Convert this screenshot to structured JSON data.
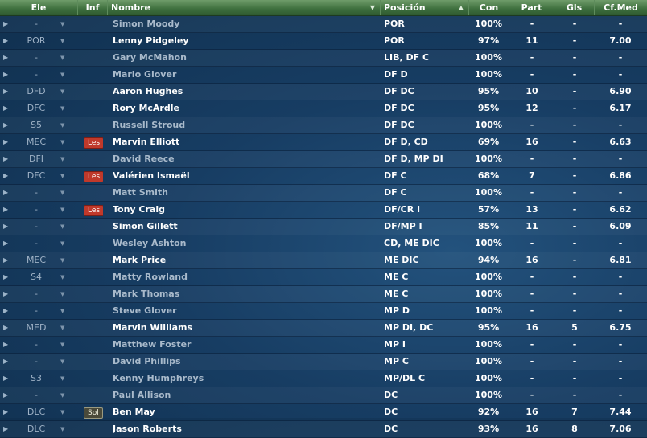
{
  "colors": {
    "header_green": "#3d6e3d",
    "background_blue": "#173d63",
    "injury_badge": "#c0392b"
  },
  "columns": {
    "ele": "Ele",
    "inf": "Inf",
    "nombre": "Nombre",
    "posicion": "Posición",
    "con": "Con",
    "part": "Part",
    "gls": "Gls",
    "cfmed": "Cf.Med"
  },
  "rows": [
    {
      "role": "-",
      "inf": "",
      "name": "Simon Moody",
      "pos": "POR",
      "con": "100%",
      "part": "-",
      "gls": "-",
      "cfmed": "-",
      "dim": true
    },
    {
      "role": "POR",
      "inf": "",
      "name": "Lenny Pidgeley",
      "pos": "POR",
      "con": "97%",
      "part": "11",
      "gls": "-",
      "cfmed": "7.00",
      "dim": false
    },
    {
      "role": "-",
      "inf": "",
      "name": "Gary McMahon",
      "pos": "LIB, DF C",
      "con": "100%",
      "part": "-",
      "gls": "-",
      "cfmed": "-",
      "dim": true
    },
    {
      "role": "-",
      "inf": "",
      "name": "Mario Glover",
      "pos": "DF D",
      "con": "100%",
      "part": "-",
      "gls": "-",
      "cfmed": "-",
      "dim": true
    },
    {
      "role": "DFD",
      "inf": "",
      "name": "Aaron Hughes",
      "pos": "DF DC",
      "con": "95%",
      "part": "10",
      "gls": "-",
      "cfmed": "6.90",
      "dim": false
    },
    {
      "role": "DFC",
      "inf": "",
      "name": "Rory McArdle",
      "pos": "DF DC",
      "con": "95%",
      "part": "12",
      "gls": "-",
      "cfmed": "6.17",
      "dim": false
    },
    {
      "role": "S5",
      "inf": "",
      "name": "Russell Stroud",
      "pos": "DF DC",
      "con": "100%",
      "part": "-",
      "gls": "-",
      "cfmed": "-",
      "dim": true
    },
    {
      "role": "MEC",
      "inf": "Les",
      "name": "Marvin Elliott",
      "pos": "DF D, CD",
      "con": "69%",
      "part": "16",
      "gls": "-",
      "cfmed": "6.63",
      "dim": false
    },
    {
      "role": "DFI",
      "inf": "",
      "name": "David Reece",
      "pos": "DF D, MP DI",
      "con": "100%",
      "part": "-",
      "gls": "-",
      "cfmed": "-",
      "dim": true
    },
    {
      "role": "DFC",
      "inf": "Les",
      "name": "Valérien Ismaël",
      "pos": "DF C",
      "con": "68%",
      "part": "7",
      "gls": "-",
      "cfmed": "6.86",
      "dim": false
    },
    {
      "role": "-",
      "inf": "",
      "name": "Matt Smith",
      "pos": "DF C",
      "con": "100%",
      "part": "-",
      "gls": "-",
      "cfmed": "-",
      "dim": true
    },
    {
      "role": "-",
      "inf": "Les",
      "name": "Tony Craig",
      "pos": "DF/CR I",
      "con": "57%",
      "part": "13",
      "gls": "-",
      "cfmed": "6.62",
      "dim": false
    },
    {
      "role": "-",
      "inf": "",
      "name": "Simon Gillett",
      "pos": "DF/MP I",
      "con": "85%",
      "part": "11",
      "gls": "-",
      "cfmed": "6.09",
      "dim": false
    },
    {
      "role": "-",
      "inf": "",
      "name": "Wesley Ashton",
      "pos": "CD, ME DIC",
      "con": "100%",
      "part": "-",
      "gls": "-",
      "cfmed": "-",
      "dim": true
    },
    {
      "role": "MEC",
      "inf": "",
      "name": "Mark Price",
      "pos": "ME DIC",
      "con": "94%",
      "part": "16",
      "gls": "-",
      "cfmed": "6.81",
      "dim": false
    },
    {
      "role": "S4",
      "inf": "",
      "name": "Matty Rowland",
      "pos": "ME C",
      "con": "100%",
      "part": "-",
      "gls": "-",
      "cfmed": "-",
      "dim": true
    },
    {
      "role": "-",
      "inf": "",
      "name": "Mark Thomas",
      "pos": "ME C",
      "con": "100%",
      "part": "-",
      "gls": "-",
      "cfmed": "-",
      "dim": true
    },
    {
      "role": "-",
      "inf": "",
      "name": "Steve Glover",
      "pos": "MP D",
      "con": "100%",
      "part": "-",
      "gls": "-",
      "cfmed": "-",
      "dim": true
    },
    {
      "role": "MED",
      "inf": "",
      "name": "Marvin Williams",
      "pos": "MP DI, DC",
      "con": "95%",
      "part": "16",
      "gls": "5",
      "cfmed": "6.75",
      "dim": false
    },
    {
      "role": "-",
      "inf": "",
      "name": "Matthew Foster",
      "pos": "MP I",
      "con": "100%",
      "part": "-",
      "gls": "-",
      "cfmed": "-",
      "dim": true
    },
    {
      "role": "-",
      "inf": "",
      "name": "David Phillips",
      "pos": "MP C",
      "con": "100%",
      "part": "-",
      "gls": "-",
      "cfmed": "-",
      "dim": true
    },
    {
      "role": "S3",
      "inf": "",
      "name": "Kenny Humphreys",
      "pos": "MP/DL C",
      "con": "100%",
      "part": "-",
      "gls": "-",
      "cfmed": "-",
      "dim": true
    },
    {
      "role": "-",
      "inf": "",
      "name": "Paul Allison",
      "pos": "DC",
      "con": "100%",
      "part": "-",
      "gls": "-",
      "cfmed": "-",
      "dim": true
    },
    {
      "role": "DLC",
      "inf": "Sol",
      "name": "Ben May",
      "pos": "DC",
      "con": "92%",
      "part": "16",
      "gls": "7",
      "cfmed": "7.44",
      "dim": false
    },
    {
      "role": "DLC",
      "inf": "",
      "name": "Jason Roberts",
      "pos": "DC",
      "con": "93%",
      "part": "16",
      "gls": "8",
      "cfmed": "7.06",
      "dim": false
    }
  ]
}
